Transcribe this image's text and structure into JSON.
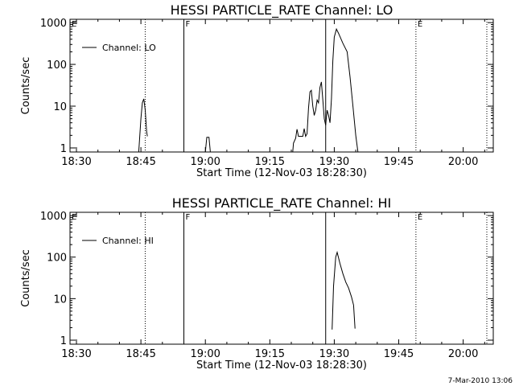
{
  "chart_data": [
    {
      "type": "line",
      "title": "HESSI PARTICLE_RATE Channel: LO",
      "xlabel": "Start Time (12-Nov-03 18:28:30)",
      "ylabel": "Counts/sec",
      "yscale": "log",
      "xlim": [
        "18:28:30",
        "20:07:00"
      ],
      "ylim": [
        0.8,
        1200
      ],
      "x_ticks": [
        "18:30",
        "18:45",
        "19:00",
        "19:15",
        "19:30",
        "19:45",
        "20:00"
      ],
      "y_ticks": [
        "1",
        "10",
        "100",
        "1000"
      ],
      "legend": "top-left",
      "grid": false,
      "vlines": [
        {
          "t": "18:46:00",
          "style": "dotted",
          "label": ""
        },
        {
          "t": "18:55:00",
          "style": "solid",
          "label": "F"
        },
        {
          "t": "19:28:00",
          "style": "solid",
          "label": ""
        },
        {
          "t": "19:49:00",
          "style": "dotted",
          "label": "E"
        },
        {
          "t": "20:05:30",
          "style": "dotted",
          "label": ""
        }
      ],
      "corner_label": "E",
      "series": [
        {
          "name": "Channel: LO",
          "segments": [
            [
              [
                "18:44:30",
                0.8
              ],
              [
                "18:45:00",
                5
              ],
              [
                "18:45:20",
                12
              ],
              [
                "18:45:40",
                15
              ],
              [
                "18:46:00",
                8
              ],
              [
                "18:46:20",
                2.5
              ],
              [
                "18:46:30",
                1.9
              ]
            ],
            [
              [
                "19:00:00",
                0.8
              ],
              [
                "19:00:20",
                1.8
              ],
              [
                "19:00:50",
                1.8
              ],
              [
                "19:01:10",
                0.8
              ]
            ],
            [
              [
                "19:20:20",
                0.8
              ],
              [
                "19:20:30",
                1.3
              ],
              [
                "19:21:00",
                1.7
              ],
              [
                "19:21:20",
                2.8
              ],
              [
                "19:21:40",
                1.9
              ],
              [
                "19:22:40",
                1.9
              ],
              [
                "19:23:00",
                2.9
              ],
              [
                "19:23:20",
                1.9
              ],
              [
                "19:23:40",
                2.2
              ],
              [
                "19:24:00",
                9
              ],
              [
                "19:24:20",
                22
              ],
              [
                "19:24:40",
                24
              ],
              [
                "19:25:00",
                10
              ],
              [
                "19:25:20",
                6
              ],
              [
                "19:25:40",
                8
              ],
              [
                "19:26:00",
                14
              ],
              [
                "19:26:20",
                12
              ],
              [
                "19:26:40",
                28
              ],
              [
                "19:27:00",
                38
              ],
              [
                "19:27:20",
                14
              ],
              [
                "19:27:40",
                5
              ],
              [
                "19:28:00",
                3.5
              ],
              [
                "19:28:20",
                8
              ],
              [
                "19:28:40",
                6
              ],
              [
                "19:29:00",
                4
              ],
              [
                "19:29:20",
                15
              ],
              [
                "19:29:40",
                120
              ],
              [
                "19:30:00",
                450
              ],
              [
                "19:30:30",
                700
              ],
              [
                "19:31:00",
                550
              ],
              [
                "19:32:00",
                320
              ],
              [
                "19:33:00",
                200
              ],
              [
                "19:33:40",
                50
              ],
              [
                "19:34:20",
                10
              ],
              [
                "19:35:00",
                2
              ],
              [
                "19:35:30",
                0.8
              ]
            ]
          ]
        }
      ]
    },
    {
      "type": "line",
      "title": "HESSI PARTICLE_RATE Channel: HI",
      "xlabel": "Start Time (12-Nov-03 18:28:30)",
      "ylabel": "Counts/sec",
      "yscale": "log",
      "xlim": [
        "18:28:30",
        "20:07:00"
      ],
      "ylim": [
        0.8,
        1200
      ],
      "x_ticks": [
        "18:30",
        "18:45",
        "19:00",
        "19:15",
        "19:30",
        "19:45",
        "20:00"
      ],
      "y_ticks": [
        "1",
        "10",
        "100",
        "1000"
      ],
      "legend": "top-left",
      "grid": false,
      "vlines": [
        {
          "t": "18:46:00",
          "style": "dotted",
          "label": ""
        },
        {
          "t": "18:55:00",
          "style": "solid",
          "label": "F"
        },
        {
          "t": "19:28:00",
          "style": "solid",
          "label": ""
        },
        {
          "t": "19:49:00",
          "style": "dotted",
          "label": "E"
        },
        {
          "t": "20:05:30",
          "style": "dotted",
          "label": ""
        }
      ],
      "corner_label": "E",
      "series": [
        {
          "name": "Channel: HI",
          "segments": [
            [
              [
                "19:29:30",
                1.8
              ],
              [
                "19:29:50",
                20
              ],
              [
                "19:30:20",
                100
              ],
              [
                "19:30:40",
                130
              ],
              [
                "19:31:20",
                70
              ],
              [
                "19:32:00",
                40
              ],
              [
                "19:32:40",
                25
              ],
              [
                "19:33:20",
                18
              ],
              [
                "19:34:00",
                11
              ],
              [
                "19:34:30",
                7
              ],
              [
                "19:34:50",
                1.9
              ]
            ]
          ]
        }
      ]
    }
  ],
  "footer": "7-Mar-2010 13:06"
}
